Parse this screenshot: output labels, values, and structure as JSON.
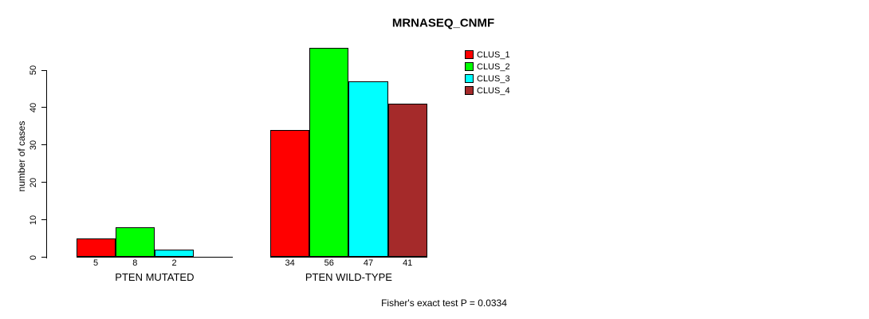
{
  "chart_data": {
    "type": "bar",
    "title": "MRNASEQ_CNMF",
    "ylabel": "number of cases",
    "xlabel": "",
    "yticks": [
      0,
      10,
      20,
      30,
      40,
      50
    ],
    "ylim": [
      0,
      56
    ],
    "grid": false,
    "legend_position": "top-right",
    "categories": [
      "PTEN MUTATED",
      "PTEN WILD-TYPE"
    ],
    "series": [
      {
        "name": "CLUS_1",
        "color": "#FF0000",
        "values": [
          5,
          34
        ]
      },
      {
        "name": "CLUS_2",
        "color": "#00FF00",
        "values": [
          8,
          56
        ]
      },
      {
        "name": "CLUS_3",
        "color": "#00FFFF",
        "values": [
          2,
          47
        ]
      },
      {
        "name": "CLUS_4",
        "color": "#A52A2A",
        "values": [
          0,
          41
        ]
      }
    ],
    "bar_value_labels": [
      [
        "5",
        "8",
        "2",
        ""
      ],
      [
        "34",
        "56",
        "47",
        "41"
      ]
    ],
    "footnote": "Fisher's exact test P = 0.0334",
    "text_color": "#000000",
    "background_color": "#FFFFFF"
  }
}
